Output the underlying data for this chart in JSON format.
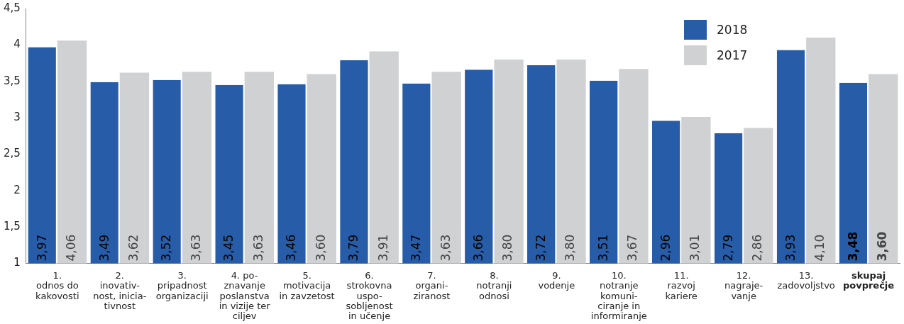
{
  "chart_data": {
    "type": "bar",
    "categories": [
      "1.\nodnos do\nkakovosti",
      "2.\ninovativ-\nnost, inicia-\ntivnost",
      "3.\npripadnost\norganizaciji",
      "4. po-\nznavanje\nposlanstva\nin vizije ter\nciljev",
      "5.\nmotivacija\nin zavzetost",
      "6.\nstrokovna\nuspo-\nsobljenost\nin učenje",
      "7.\norgani-\nziranost",
      "8.\nnotranji\nodnosi",
      "9.\nvodenje",
      "10.\nnotranje\nkomuni-\nciranje in\ninformiranje",
      "11.\nrazvoj\nkariere",
      "12.\nnagraje-\nvanje",
      "13.\nzadovoljstvo",
      "skupaj\npovprečje"
    ],
    "series": [
      {
        "name": "2018",
        "color": "#275da8",
        "values": [
          3.97,
          3.49,
          3.52,
          3.45,
          3.46,
          3.79,
          3.47,
          3.66,
          3.72,
          3.51,
          2.96,
          2.79,
          3.93,
          3.48
        ],
        "value_labels": [
          "3,97",
          "3,49",
          "3,52",
          "3,45",
          "3,46",
          "3,79",
          "3,47",
          "3,66",
          "3,72",
          "3,51",
          "2,96",
          "2,79",
          "3,93",
          "3,48"
        ]
      },
      {
        "name": "2017",
        "color": "#d0d1d3",
        "values": [
          4.06,
          3.62,
          3.63,
          3.63,
          3.6,
          3.91,
          3.63,
          3.8,
          3.8,
          3.67,
          3.01,
          2.86,
          4.1,
          3.6
        ],
        "value_labels": [
          "4,06",
          "3,62",
          "3,63",
          "3,63",
          "3,60",
          "3,91",
          "3,63",
          "3,80",
          "3,80",
          "3,67",
          "3,01",
          "2,86",
          "4,10",
          "3,60"
        ]
      }
    ],
    "ylim": [
      1,
      4.5
    ],
    "yticks": [
      1,
      {
        "value": 1.5,
        "label": "1,5"
      },
      2,
      {
        "value": 2.5,
        "label": "2,5"
      },
      3,
      {
        "value": 3.5,
        "label": "3,5"
      },
      4,
      {
        "value": 4.5,
        "label": "4,5"
      }
    ],
    "grid": false,
    "legend": "top right"
  }
}
